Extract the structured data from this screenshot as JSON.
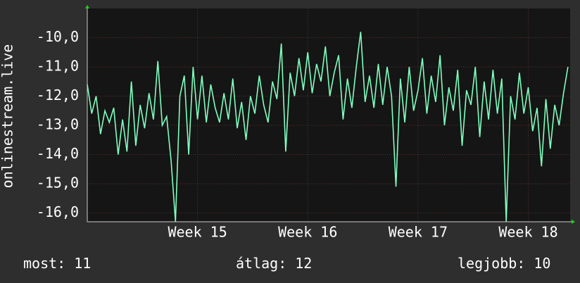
{
  "chart_data": {
    "type": "line",
    "y_label": "onlinestream.live",
    "xlim": [
      14,
      18.38
    ],
    "ylim": [
      -16.3,
      -9.0
    ],
    "xticks": [
      {
        "value": 15,
        "label": "Week 15"
      },
      {
        "value": 16,
        "label": "Week 16"
      },
      {
        "value": 17,
        "label": "Week 17"
      },
      {
        "value": 18,
        "label": "Week 18"
      }
    ],
    "yticks": [
      {
        "value": -16,
        "label": "-16,0"
      },
      {
        "value": -15,
        "label": "-15,0"
      },
      {
        "value": -14,
        "label": "-14,0"
      },
      {
        "value": -13,
        "label": "-13,0"
      },
      {
        "value": -12,
        "label": "-12,0"
      },
      {
        "value": -11,
        "label": "-11,0"
      },
      {
        "value": -10,
        "label": "-10,0"
      }
    ],
    "grid": true,
    "x": [
      14,
      14.04,
      14.08,
      14.12,
      14.16,
      14.2,
      14.24,
      14.28,
      14.32,
      14.36,
      14.4,
      14.44,
      14.48,
      14.52,
      14.56,
      14.6,
      14.64,
      14.68,
      14.72,
      14.76,
      14.8,
      14.84,
      14.88,
      14.92,
      14.96,
      15,
      15.04,
      15.08,
      15.12,
      15.16,
      15.2,
      15.24,
      15.28,
      15.32,
      15.36,
      15.4,
      15.44,
      15.48,
      15.52,
      15.56,
      15.6,
      15.64,
      15.68,
      15.72,
      15.76,
      15.8,
      15.84,
      15.88,
      15.92,
      15.96,
      16,
      16.04,
      16.08,
      16.12,
      16.16,
      16.2,
      16.24,
      16.28,
      16.32,
      16.36,
      16.4,
      16.44,
      16.48,
      16.52,
      16.56,
      16.6,
      16.64,
      16.68,
      16.72,
      16.76,
      16.8,
      16.84,
      16.88,
      16.92,
      16.96,
      17,
      17.04,
      17.08,
      17.12,
      17.16,
      17.2,
      17.24,
      17.28,
      17.32,
      17.36,
      17.4,
      17.44,
      17.48,
      17.52,
      17.56,
      17.6,
      17.64,
      17.68,
      17.72,
      17.76,
      17.8,
      17.84,
      17.88,
      17.92,
      17.96,
      18,
      18.04,
      18.08,
      18.12,
      18.16,
      18.2,
      18.24,
      18.28,
      18.32,
      18.36
    ],
    "series": [
      {
        "color": "#7fffbf",
        "values": [
          -11.6,
          -12.6,
          -12.0,
          -13.3,
          -12.5,
          -12.9,
          -12.4,
          -14.0,
          -12.8,
          -13.9,
          -11.5,
          -13.7,
          -12.3,
          -13.1,
          -11.9,
          -12.8,
          -10.8,
          -13.0,
          -12.7,
          -14.2,
          -16.3,
          -12.0,
          -11.3,
          -14.0,
          -11.0,
          -12.8,
          -11.3,
          -12.9,
          -11.6,
          -12.4,
          -12.9,
          -11.9,
          -12.8,
          -11.4,
          -13.1,
          -12.2,
          -13.5,
          -12.0,
          -12.6,
          -11.3,
          -12.3,
          -12.9,
          -11.5,
          -12.1,
          -10.2,
          -13.9,
          -11.2,
          -12.0,
          -10.7,
          -11.8,
          -10.5,
          -11.9,
          -10.9,
          -11.5,
          -10.3,
          -12.0,
          -11.2,
          -10.6,
          -12.8,
          -11.4,
          -12.4,
          -11.0,
          -9.8,
          -12.2,
          -11.3,
          -12.4,
          -10.9,
          -12.3,
          -11.0,
          -12.0,
          -15.1,
          -11.4,
          -12.9,
          -11.0,
          -12.5,
          -11.8,
          -10.7,
          -12.6,
          -11.3,
          -12.2,
          -10.6,
          -13.0,
          -11.7,
          -12.5,
          -11.1,
          -13.7,
          -11.8,
          -12.3,
          -11.0,
          -13.4,
          -11.5,
          -12.8,
          -11.1,
          -12.6,
          -11.4,
          -16.3,
          -12.0,
          -12.8,
          -11.2,
          -12.6,
          -11.7,
          -13.2,
          -12.4,
          -14.4,
          -12.1,
          -13.8,
          -12.3,
          -13.0,
          -11.9,
          -11.0
        ]
      }
    ],
    "legend_stats": [
      {
        "label": "most:",
        "value": 11
      },
      {
        "label": "átlag:",
        "value": 12
      },
      {
        "label": "legjobb:",
        "value": 10
      }
    ]
  }
}
